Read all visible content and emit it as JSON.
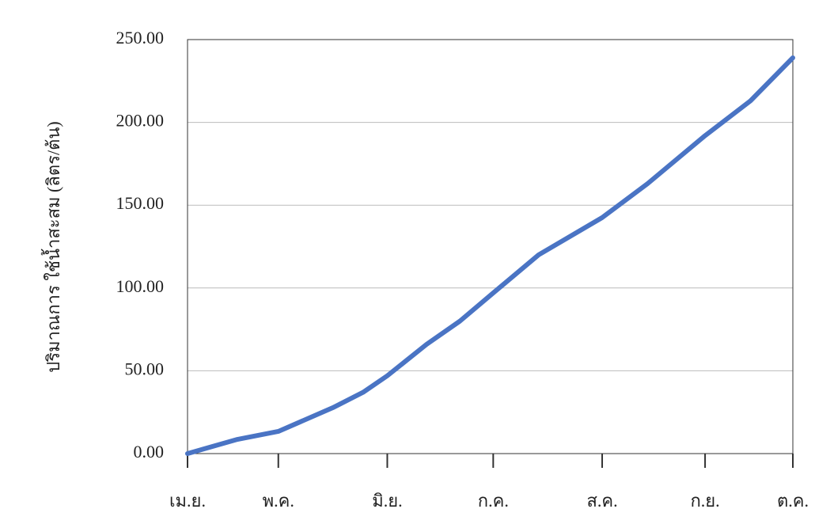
{
  "chart_data": {
    "type": "line",
    "ylabel": "ปริมาณการ ใช้น้ำสะสม (ลิตร/ต้น)",
    "x": [
      0,
      16.5,
      30,
      48,
      58,
      66,
      79,
      90,
      101,
      116,
      137,
      152,
      171,
      186,
      200
    ],
    "values": [
      0,
      8.6,
      13.4,
      27.7,
      37,
      47,
      66,
      80,
      97,
      120,
      142.5,
      163,
      192,
      213,
      239
    ],
    "color": "#4a74c4",
    "xlim": [
      0,
      200
    ],
    "xticks": [
      {
        "value": 0,
        "label": "เม.ย."
      },
      {
        "value": 30,
        "label": "พ.ค."
      },
      {
        "value": 66,
        "label": "มิ.ย."
      },
      {
        "value": 101,
        "label": "ก.ค."
      },
      {
        "value": 137,
        "label": "ส.ค."
      },
      {
        "value": 171,
        "label": "ก.ย."
      },
      {
        "value": 200,
        "label": "ต.ค."
      }
    ],
    "ylim": [
      0,
      250
    ],
    "yticks": [
      {
        "value": 0,
        "label": "0.00"
      },
      {
        "value": 50,
        "label": "50.00"
      },
      {
        "value": 100,
        "label": "100.00"
      },
      {
        "value": 150,
        "label": "150.00"
      },
      {
        "value": 200,
        "label": "200.00"
      },
      {
        "value": 250,
        "label": "250.00"
      }
    ],
    "grid": true
  }
}
